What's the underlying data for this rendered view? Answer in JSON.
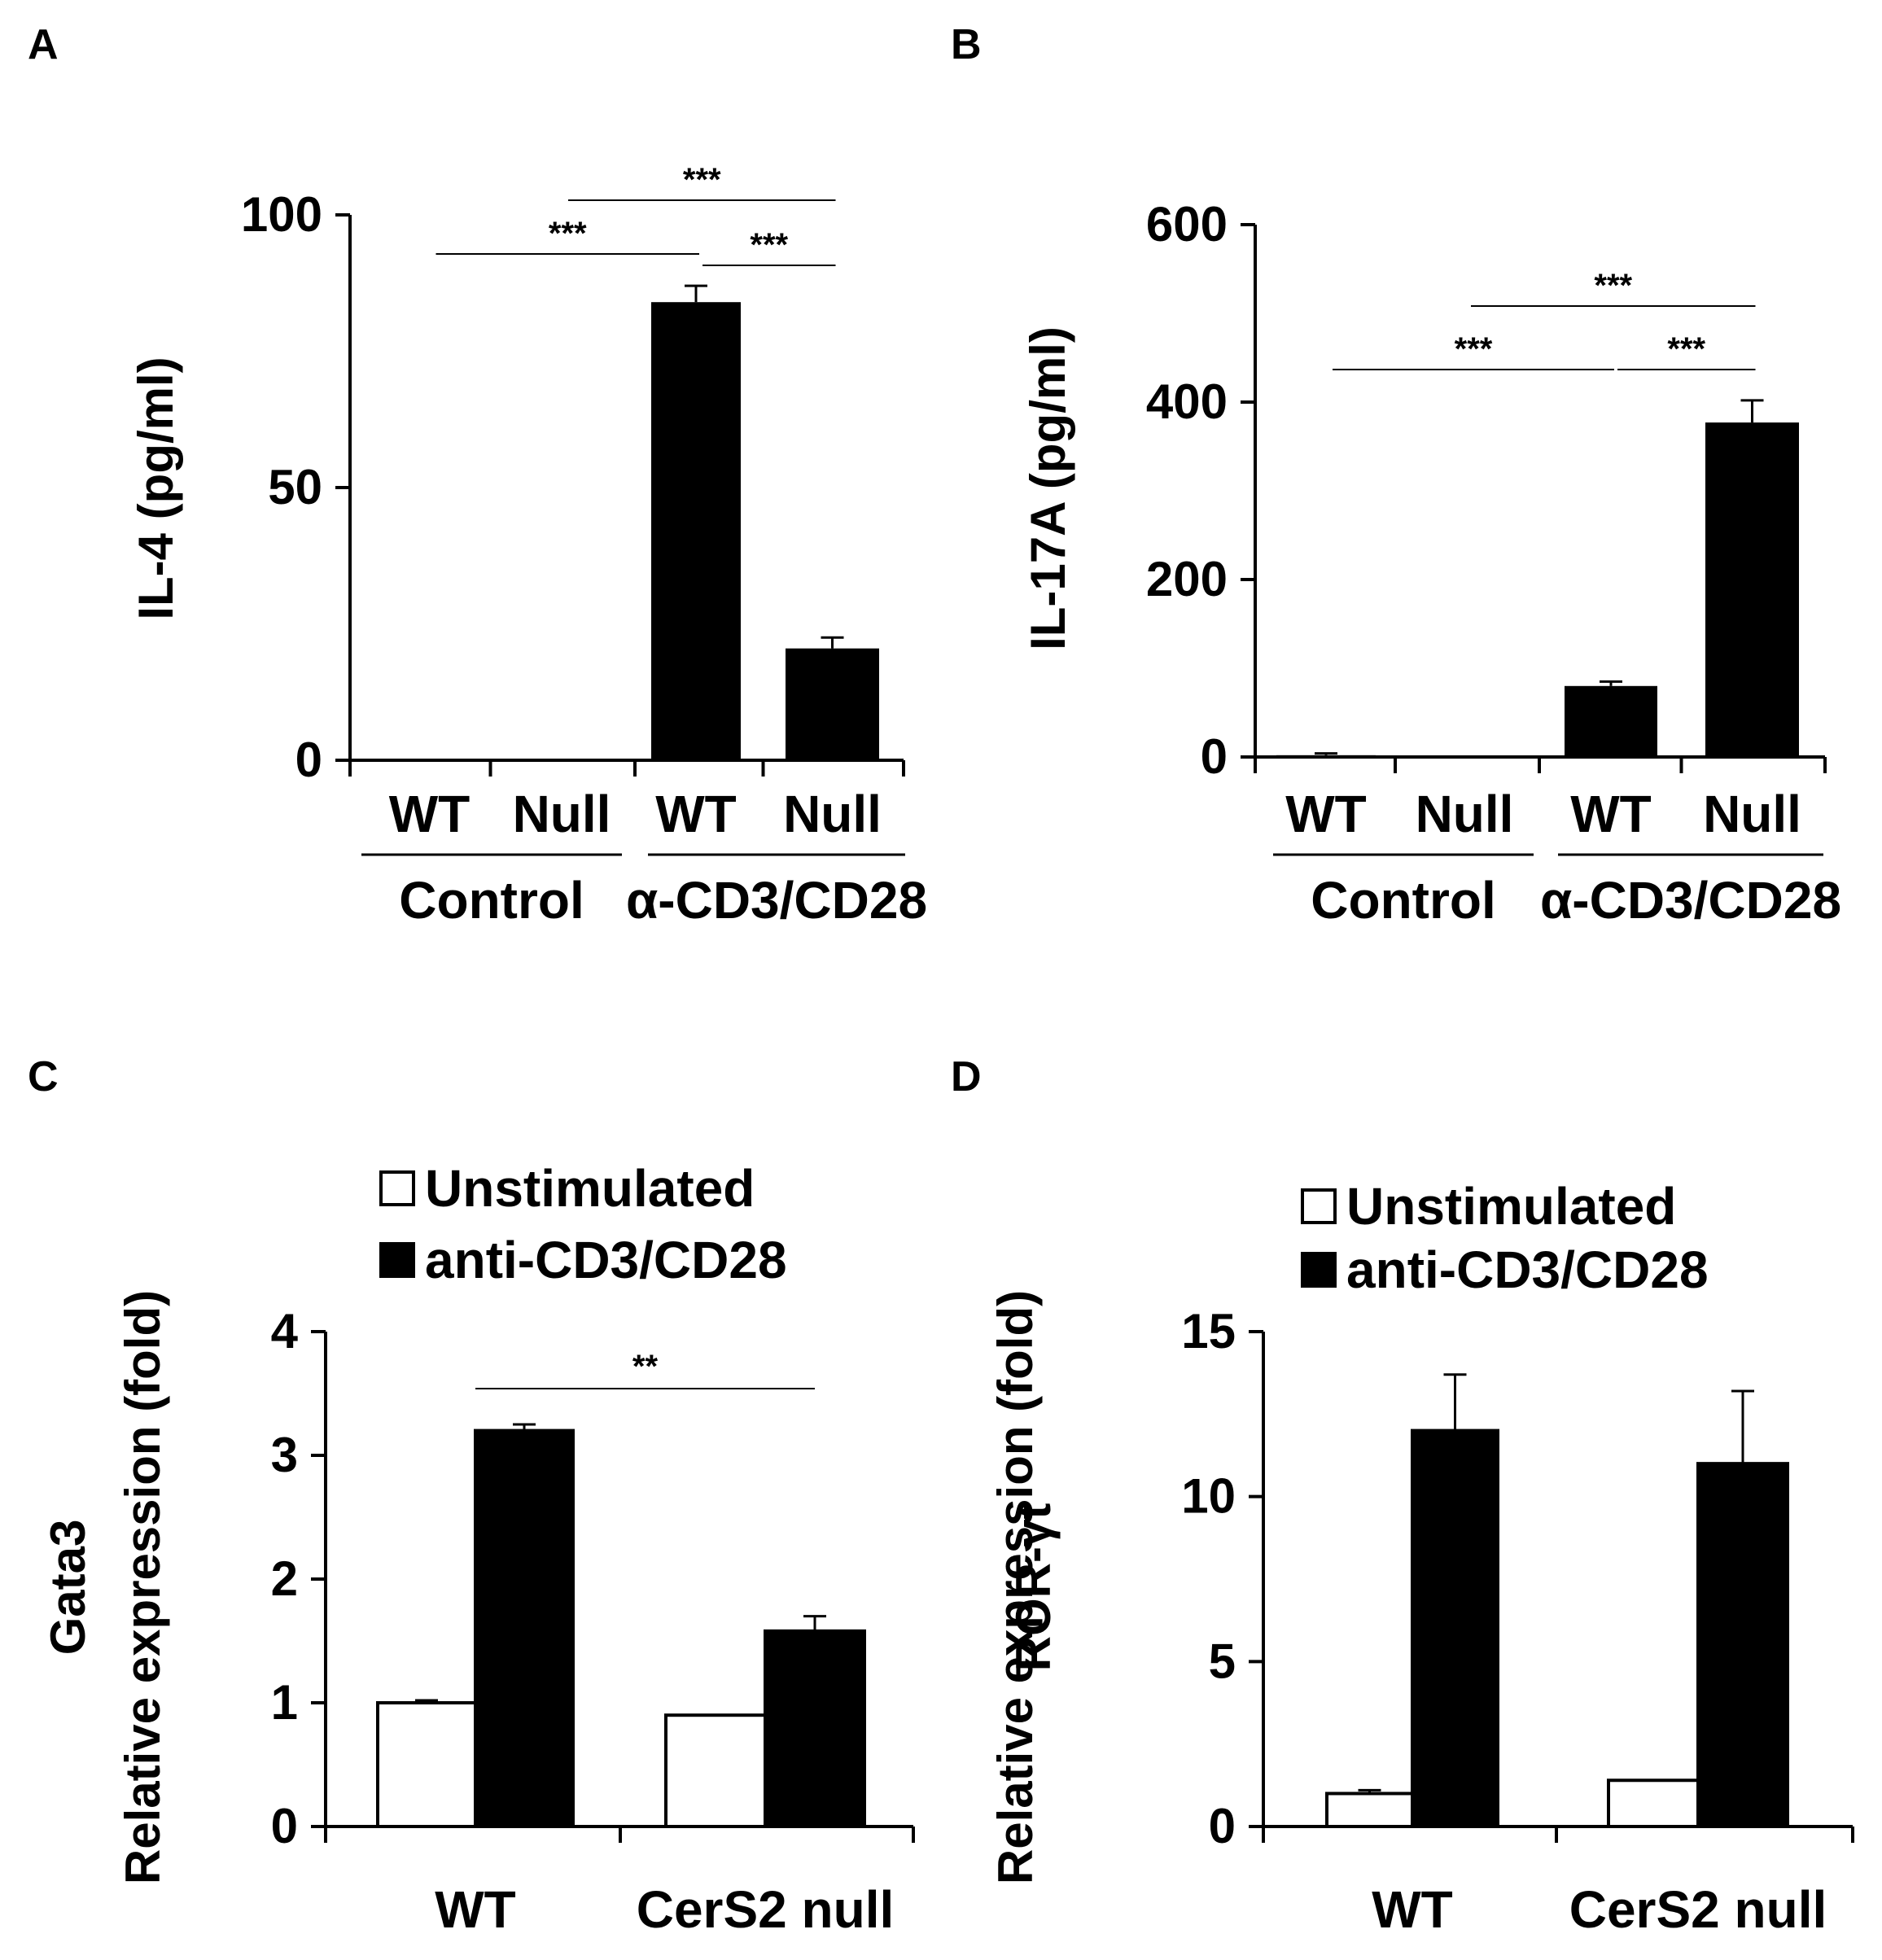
{
  "colors": {
    "filled": "#000000",
    "open": "#ffffff",
    "axis": "#000000"
  },
  "chart_data": [
    {
      "panel": "A",
      "type": "bar",
      "ylabel": "IL-4 (pg/ml)",
      "ylim": [
        0,
        100
      ],
      "yticks": [
        0,
        50,
        100
      ],
      "tick_labels": [
        "0",
        "50",
        "100"
      ],
      "bars": [
        {
          "label": "WT",
          "value": 0,
          "error": 0
        },
        {
          "label": "Null",
          "value": 0,
          "error": 0
        },
        {
          "label": "WT",
          "value": 84,
          "error": 3
        },
        {
          "label": "Null",
          "value": 20.5,
          "error": 2
        }
      ],
      "groups": [
        {
          "label": "Control",
          "bars": [
            0,
            1
          ]
        },
        {
          "label": "α-CD3/CD28",
          "bars": [
            2,
            3
          ]
        }
      ],
      "significance": [
        {
          "from": 0,
          "to": 2,
          "label": "***"
        },
        {
          "from": 2,
          "to": 3,
          "label": "***"
        },
        {
          "from": 1,
          "to": 3,
          "label": "***"
        }
      ]
    },
    {
      "panel": "B",
      "type": "bar",
      "ylabel": "IL-17A (pg/ml)",
      "ylim": [
        0,
        600
      ],
      "yticks": [
        0,
        200,
        400,
        600
      ],
      "tick_labels": [
        "0",
        "200",
        "400",
        "600"
      ],
      "bars": [
        {
          "label": "WT",
          "value": 2,
          "error": 2
        },
        {
          "label": "Null",
          "value": 0,
          "error": 0
        },
        {
          "label": "WT",
          "value": 80,
          "error": 5
        },
        {
          "label": "Null",
          "value": 377,
          "error": 25
        }
      ],
      "groups": [
        {
          "label": "Control",
          "bars": [
            0,
            1
          ]
        },
        {
          "label": "α-CD3/CD28",
          "bars": [
            2,
            3
          ]
        }
      ],
      "significance": [
        {
          "from": 0,
          "to": 2,
          "label": "***"
        },
        {
          "from": 2,
          "to": 3,
          "label": "***"
        },
        {
          "from": 1,
          "to": 3,
          "label": "***"
        }
      ]
    },
    {
      "panel": "C",
      "type": "bar",
      "ylabel": [
        "Gata3",
        "Relative expression (fold)"
      ],
      "ylim": [
        0,
        4
      ],
      "yticks": [
        0,
        1,
        2,
        3,
        4
      ],
      "tick_labels": [
        "0",
        "1",
        "2",
        "3",
        "4"
      ],
      "categories": [
        "WT",
        "CerS2 null"
      ],
      "series": [
        {
          "name": "Unstimulated",
          "fill": "open",
          "values": [
            1.0,
            0.9
          ],
          "errors": [
            0.02,
            0.0
          ]
        },
        {
          "name": "anti-CD3/CD28",
          "fill": "filled",
          "values": [
            3.2,
            1.58
          ],
          "errors": [
            0.05,
            0.12
          ]
        }
      ],
      "significance": [
        {
          "from": [
            0,
            1
          ],
          "to": [
            1,
            1
          ],
          "label": "**"
        }
      ]
    },
    {
      "panel": "D",
      "type": "bar",
      "ylabel": [
        "ROR-γt",
        "Relative expression (fold)"
      ],
      "ylim": [
        0,
        15
      ],
      "yticks": [
        0,
        5,
        10,
        15
      ],
      "tick_labels": [
        "0",
        "5",
        "10",
        "15"
      ],
      "categories": [
        "WT",
        "CerS2 null"
      ],
      "series": [
        {
          "name": "Unstimulated",
          "fill": "open",
          "values": [
            1.0,
            1.4
          ],
          "errors": [
            0.1,
            0.0
          ]
        },
        {
          "name": "anti-CD3/CD28",
          "fill": "filled",
          "values": [
            12.0,
            11.0
          ],
          "errors": [
            1.7,
            2.2
          ]
        }
      ],
      "significance": []
    }
  ]
}
